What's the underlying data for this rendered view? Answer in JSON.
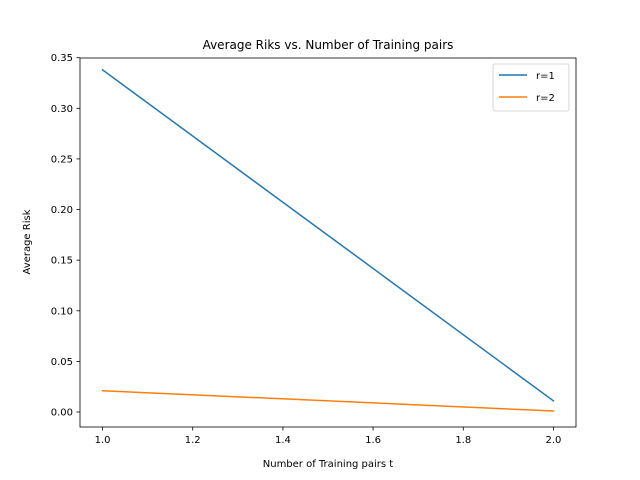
{
  "chart_data": {
    "type": "line",
    "title": "Average Riks vs. Number of Training pairs",
    "xlabel": "Number of Training pairs t",
    "ylabel": "Average Risk",
    "xlim": [
      0.95,
      2.05
    ],
    "ylim": [
      -0.0148,
      0.3497
    ],
    "x_ticks": [
      1.0,
      1.2,
      1.4,
      1.6,
      1.8,
      2.0
    ],
    "x_tick_labels": [
      "1.0",
      "1.2",
      "1.4",
      "1.6",
      "1.8",
      "2.0"
    ],
    "y_ticks": [
      0.0,
      0.05,
      0.1,
      0.15,
      0.2,
      0.25,
      0.3,
      0.35
    ],
    "y_tick_labels": [
      "0.00",
      "0.05",
      "0.10",
      "0.15",
      "0.20",
      "0.25",
      "0.30",
      "0.35"
    ],
    "grid": false,
    "legend_position": "top-right",
    "series": [
      {
        "name": "r=1",
        "color": "#1f77b4",
        "x": [
          1,
          2
        ],
        "values": [
          0.338,
          0.011
        ]
      },
      {
        "name": "r=2",
        "color": "#ff7f0e",
        "x": [
          1,
          2
        ],
        "values": [
          0.021,
          0.001
        ]
      }
    ]
  }
}
